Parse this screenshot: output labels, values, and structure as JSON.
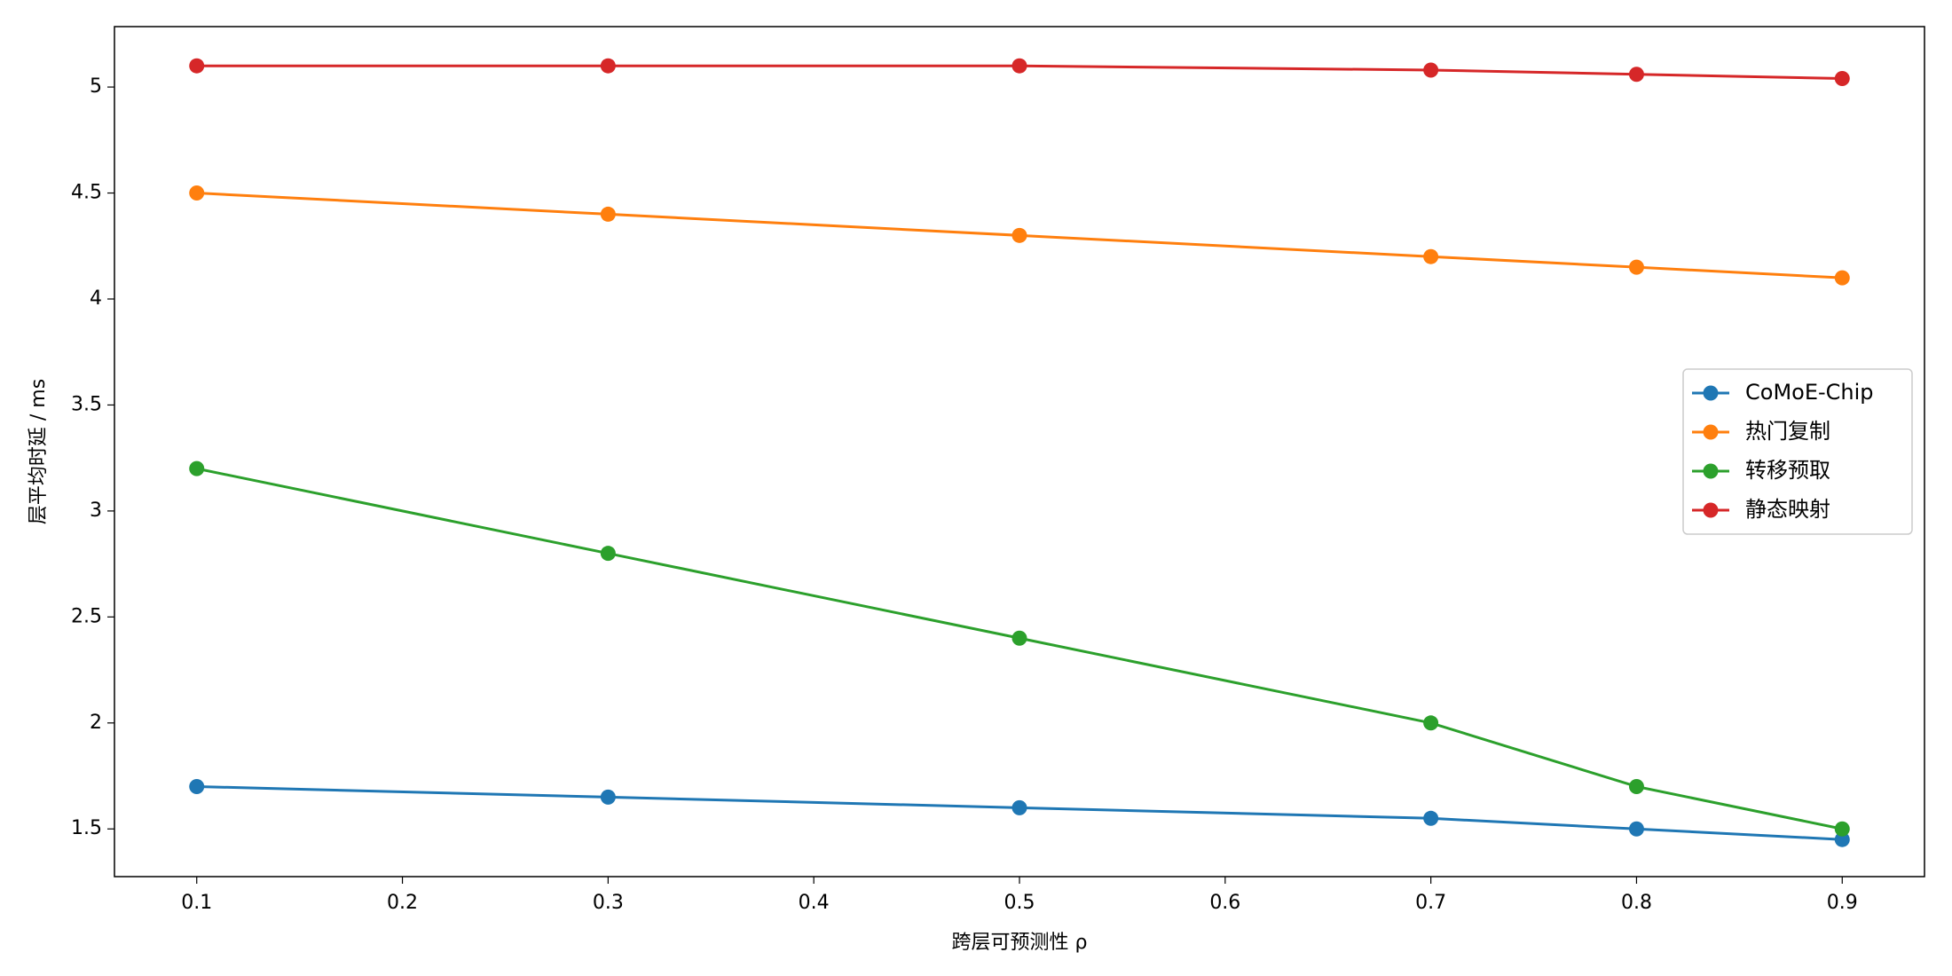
{
  "chart_data": {
    "type": "line",
    "x_label": "跨层可预测性 ρ",
    "y_label": "层平均时延 / ms",
    "x": [
      0.1,
      0.3,
      0.5,
      0.7,
      0.8,
      0.9
    ],
    "series": [
      {
        "name": "CoMoE-Chip",
        "color": "#1f77b4",
        "values": [
          1.7,
          1.65,
          1.6,
          1.55,
          1.5,
          1.45
        ]
      },
      {
        "name": "热门复制",
        "color": "#ff7f0e",
        "values": [
          4.5,
          4.4,
          4.3,
          4.2,
          4.15,
          4.1
        ]
      },
      {
        "name": "转移预取",
        "color": "#2ca02c",
        "values": [
          3.2,
          2.8,
          2.4,
          2.0,
          1.7,
          1.5
        ]
      },
      {
        "name": "静态映射",
        "color": "#d62728",
        "values": [
          5.1,
          5.1,
          5.1,
          5.08,
          5.06,
          5.04
        ]
      }
    ],
    "xlim": [
      0.06,
      0.94
    ],
    "xticks": [
      0.1,
      0.2,
      0.3,
      0.4,
      0.5,
      0.6,
      0.7,
      0.8,
      0.9
    ],
    "ylim": [
      1.275,
      5.285
    ],
    "yticks": [
      1.5,
      2.0,
      2.5,
      3.0,
      3.5,
      4.0,
      4.5,
      5.0
    ],
    "legend": "right",
    "grid": false
  }
}
